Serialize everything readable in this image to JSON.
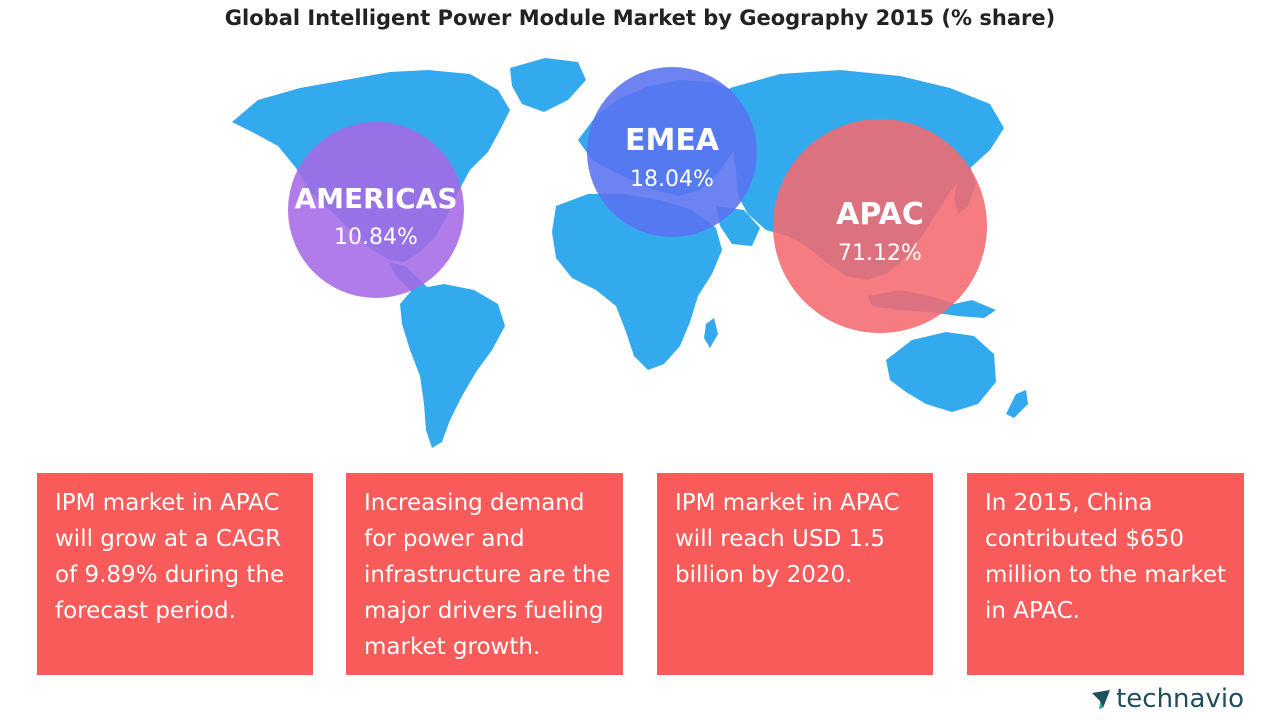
{
  "chart_data": {
    "type": "bubble-map",
    "title": "Global Intelligent Power Module Market by Geography 2015 (% share)",
    "unit": "% share",
    "year": 2015,
    "regions": [
      {
        "name": "AMERICAS",
        "value": 10.84,
        "label": "10.84%",
        "color": "#a56ae6"
      },
      {
        "name": "EMEA",
        "value": 18.04,
        "label": "18.04%",
        "color": "#5a72f0"
      },
      {
        "name": "APAC",
        "value": 71.12,
        "label": "71.12%",
        "color": "#f46a70"
      }
    ]
  },
  "colors": {
    "map": "#33aaee",
    "card": "#f95b5b",
    "title": "#222222",
    "logo": "#1f4e5f",
    "logo_accent": "#27b3a5"
  },
  "cards": [
    {
      "text": "IPM market in APAC will grow at a CAGR of 9.89% during the forecast period."
    },
    {
      "text": "Increasing demand for power and infrastructure are the major drivers fueling market growth."
    },
    {
      "text": "IPM market in APAC will reach USD 1.5 billion by 2020."
    },
    {
      "text": "In 2015, China contributed $650 million to the market in APAC."
    }
  ],
  "logo": {
    "text": "technavio",
    "icon": "technavio-logo-icon"
  }
}
